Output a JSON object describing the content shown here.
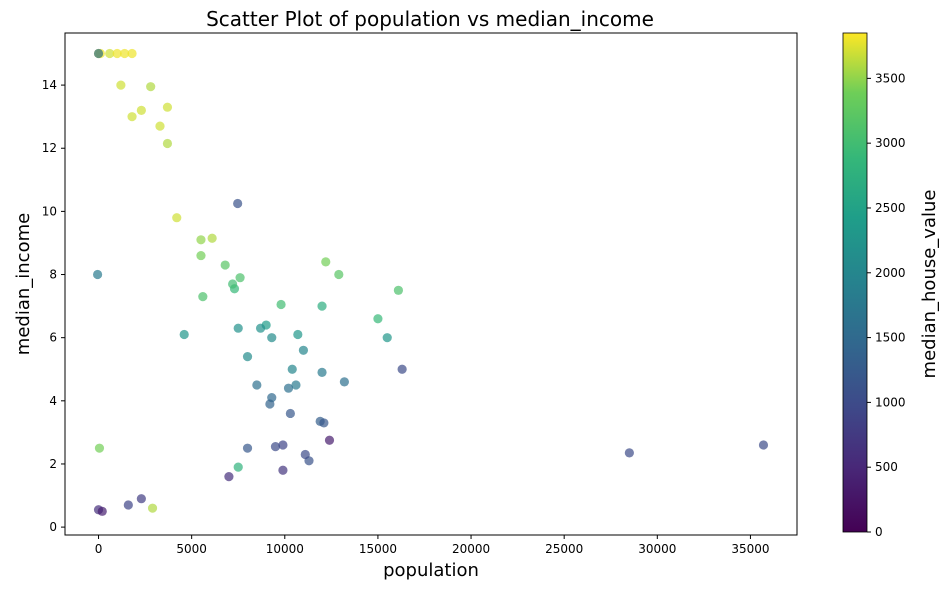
{
  "chart_data": {
    "type": "scatter",
    "title": "Scatter Plot of population vs median_income",
    "xlabel": "population",
    "ylabel": "median_income",
    "xlim": [
      -1800,
      37500
    ],
    "ylim": [
      -0.25,
      15.65
    ],
    "xticks": [
      0,
      5000,
      10000,
      15000,
      20000,
      25000,
      30000,
      35000
    ],
    "yticks": [
      0,
      2,
      4,
      6,
      8,
      10,
      12,
      14
    ],
    "grid": false,
    "colorbar": {
      "label": "median_house_value",
      "colormap": "viridis",
      "range": [
        0,
        3850
      ],
      "ticks": [
        0,
        500,
        1000,
        1500,
        2000,
        2500,
        3000,
        3500
      ]
    },
    "point_alpha": 0.7,
    "points": [
      [
        7470,
        10.25,
        1100
      ],
      [
        12400,
        2.75,
        350
      ],
      [
        28500,
        2.35,
        1000
      ],
      [
        35700,
        2.6,
        1000
      ],
      [
        16300,
        5.0,
        1000
      ],
      [
        15500,
        6.0,
        2300
      ],
      [
        16100,
        7.5,
        3100
      ],
      [
        15000,
        6.6,
        2900
      ],
      [
        12900,
        8.0,
        3200
      ],
      [
        12200,
        8.4,
        3400
      ],
      [
        13200,
        4.6,
        1600
      ],
      [
        12000,
        7.0,
        2700
      ],
      [
        12000,
        4.9,
        1800
      ],
      [
        11900,
        3.35,
        1300
      ],
      [
        12100,
        3.3,
        1200
      ],
      [
        11300,
        2.1,
        1100
      ],
      [
        11100,
        2.3,
        1000
      ],
      [
        9900,
        1.8,
        700
      ],
      [
        9900,
        2.6,
        900
      ],
      [
        9500,
        2.55,
        1000
      ],
      [
        9800,
        7.05,
        3000
      ],
      [
        9000,
        6.4,
        2400
      ],
      [
        8700,
        6.3,
        2200
      ],
      [
        9300,
        6.0,
        2100
      ],
      [
        9300,
        4.1,
        1500
      ],
      [
        9200,
        3.9,
        1400
      ],
      [
        10300,
        3.6,
        1200
      ],
      [
        10600,
        4.5,
        1800
      ],
      [
        10200,
        4.4,
        1600
      ],
      [
        10700,
        6.1,
        2300
      ],
      [
        10400,
        5.0,
        2000
      ],
      [
        11000,
        5.6,
        2000
      ],
      [
        7300,
        7.55,
        2900
      ],
      [
        7600,
        7.9,
        3100
      ],
      [
        7200,
        7.7,
        3000
      ],
      [
        6800,
        8.3,
        3200
      ],
      [
        6100,
        9.15,
        3600
      ],
      [
        5500,
        9.1,
        3500
      ],
      [
        5500,
        8.6,
        3400
      ],
      [
        5600,
        7.3,
        3100
      ],
      [
        7000,
        1.6,
        600
      ],
      [
        7500,
        1.9,
        2800
      ],
      [
        8000,
        2.5,
        1200
      ],
      [
        7500,
        6.3,
        2200
      ],
      [
        8000,
        5.4,
        2100
      ],
      [
        8500,
        4.5,
        1600
      ],
      [
        2800,
        13.95,
        3600
      ],
      [
        3700,
        13.3,
        3700
      ],
      [
        3300,
        12.7,
        3700
      ],
      [
        3700,
        12.15,
        3600
      ],
      [
        1200,
        14.0,
        3700
      ],
      [
        4200,
        9.8,
        3700
      ],
      [
        2900,
        0.6,
        3600
      ],
      [
        2300,
        0.9,
        800
      ],
      [
        1600,
        0.7,
        900
      ],
      [
        0,
        0.55,
        600
      ],
      [
        200,
        0.5,
        400
      ],
      [
        50,
        2.5,
        3400
      ],
      [
        -50,
        8.0,
        1800
      ],
      [
        100,
        15.0,
        3800
      ],
      [
        0,
        15.0,
        3800
      ],
      [
        600,
        15.0,
        3700
      ],
      [
        1000,
        15.0,
        3800
      ],
      [
        1400,
        15.0,
        3800
      ],
      [
        1800,
        15.0,
        3800
      ],
      [
        0,
        15.0,
        1600
      ],
      [
        1800,
        13.0,
        3700
      ],
      [
        2300,
        13.2,
        3700
      ],
      [
        4600,
        6.1,
        2300
      ]
    ]
  }
}
